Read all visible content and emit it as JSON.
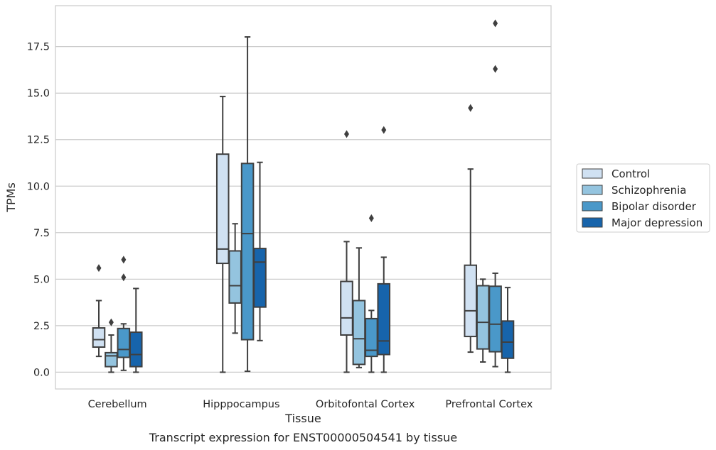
{
  "chart_data": {
    "type": "box",
    "title": "Transcript expression for ENST00000504541 by tissue",
    "xlabel": "Tissue",
    "ylabel": "TPMs",
    "ylim": [
      -0.9,
      19.7
    ],
    "yticks": [
      0.0,
      2.5,
      5.0,
      7.5,
      10.0,
      12.5,
      15.0,
      17.5
    ],
    "ytick_labels": [
      "0.0",
      "2.5",
      "5.0",
      "7.5",
      "10.0",
      "12.5",
      "15.0",
      "17.5"
    ],
    "grid": "horizontal",
    "legend_position": "right",
    "categories": [
      "Cerebellum",
      "Hipppocampus",
      "Orbitofontal Cortex",
      "Prefrontal Cortex"
    ],
    "series": [
      {
        "name": "Control",
        "color": "#d0e1f2",
        "boxes": [
          {
            "whislo": 0.85,
            "q1": 1.35,
            "med": 1.75,
            "q3": 2.38,
            "whishi": 3.85,
            "fliers": [
              5.6
            ]
          },
          {
            "whislo": 0.0,
            "q1": 5.85,
            "med": 6.62,
            "q3": 11.72,
            "whishi": 14.82,
            "fliers": []
          },
          {
            "whislo": 0.0,
            "q1": 2.0,
            "med": 2.92,
            "q3": 4.88,
            "whishi": 7.02,
            "fliers": [
              12.8
            ]
          },
          {
            "whislo": 1.08,
            "q1": 1.92,
            "med": 3.3,
            "q3": 5.75,
            "whishi": 10.92,
            "fliers": [
              14.2
            ]
          }
        ]
      },
      {
        "name": "Schizophrenia",
        "color": "#94c4df",
        "boxes": [
          {
            "whislo": 0.0,
            "q1": 0.3,
            "med": 0.88,
            "q3": 1.05,
            "whishi": 2.0,
            "fliers": [
              2.68
            ]
          },
          {
            "whislo": 2.1,
            "q1": 3.72,
            "med": 4.65,
            "q3": 6.52,
            "whishi": 7.98,
            "fliers": []
          },
          {
            "whislo": 0.25,
            "q1": 0.42,
            "med": 1.8,
            "q3": 3.85,
            "whishi": 6.68,
            "fliers": []
          },
          {
            "whislo": 0.55,
            "q1": 1.25,
            "med": 2.68,
            "q3": 4.65,
            "whishi": 5.0,
            "fliers": []
          }
        ]
      },
      {
        "name": "Bipolar disorder",
        "color": "#4a98c9",
        "boxes": [
          {
            "whislo": 0.1,
            "q1": 0.8,
            "med": 1.22,
            "q3": 2.35,
            "whishi": 2.6,
            "fliers": [
              5.1,
              6.05
            ]
          },
          {
            "whislo": 0.05,
            "q1": 1.75,
            "med": 7.45,
            "q3": 11.22,
            "whishi": 18.02,
            "fliers": []
          },
          {
            "whislo": 0.0,
            "q1": 0.85,
            "med": 1.18,
            "q3": 2.88,
            "whishi": 3.32,
            "fliers": [
              8.28
            ]
          },
          {
            "whislo": 0.3,
            "q1": 1.1,
            "med": 2.58,
            "q3": 4.62,
            "whishi": 5.32,
            "fliers": [
              16.3,
              18.75
            ]
          }
        ]
      },
      {
        "name": "Major depression",
        "color": "#1764ab",
        "boxes": [
          {
            "whislo": 0.0,
            "q1": 0.3,
            "med": 0.95,
            "q3": 2.15,
            "whishi": 4.5,
            "fliers": []
          },
          {
            "whislo": 1.7,
            "q1": 3.5,
            "med": 5.92,
            "q3": 6.65,
            "whishi": 11.28,
            "fliers": []
          },
          {
            "whislo": 0.0,
            "q1": 0.95,
            "med": 1.68,
            "q3": 4.75,
            "whishi": 6.18,
            "fliers": [
              13.02
            ]
          },
          {
            "whislo": 0.0,
            "q1": 0.75,
            "med": 1.62,
            "q3": 2.75,
            "whishi": 4.55,
            "fliers": []
          }
        ]
      }
    ]
  }
}
